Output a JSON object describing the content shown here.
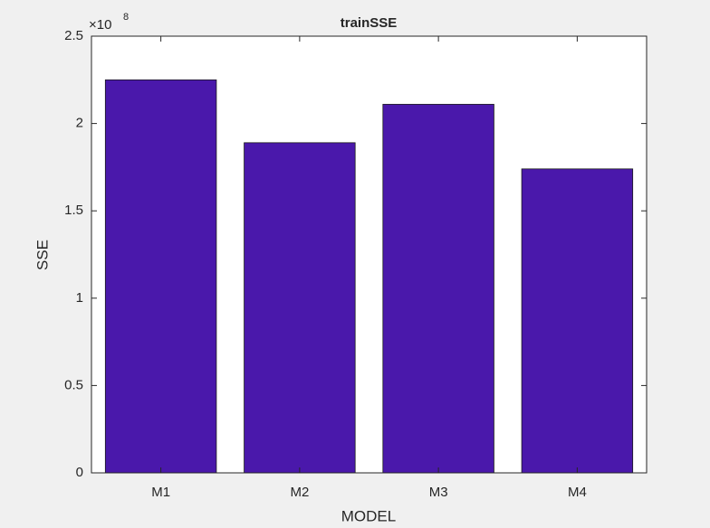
{
  "chart_data": {
    "type": "bar",
    "title": "trainSSE",
    "x_label": "MODEL",
    "y_label": "SSE",
    "y_multiplier": {
      "base": "×10",
      "exponent": "8"
    },
    "categories": [
      "M1",
      "M2",
      "M3",
      "M4"
    ],
    "values": [
      2.25,
      1.89,
      2.11,
      1.74
    ],
    "color": "#4a18ab",
    "ylim": [
      0,
      2.5
    ],
    "yticks": [
      0,
      0.5,
      1,
      1.5,
      2,
      2.5
    ],
    "grid": false
  }
}
